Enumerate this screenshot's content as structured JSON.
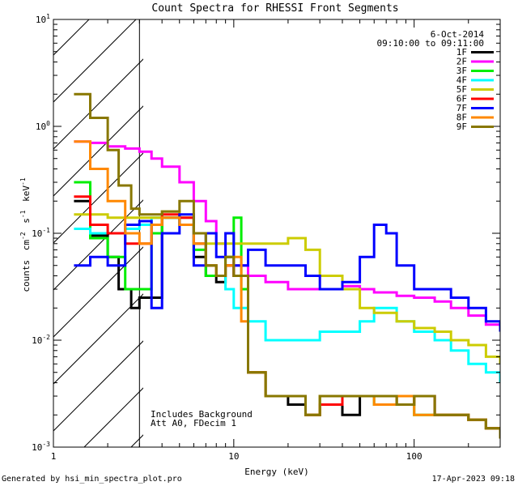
{
  "chart_data": {
    "type": "line",
    "title": "Count Spectra for RHESSI Front Segments",
    "xlabel": "Energy (keV)",
    "ylabel_parts": {
      "counts": "counts",
      "cm": "cm",
      "cm_exp": "-2",
      "s": "s",
      "s_exp": "-1",
      "kev": "keV",
      "kev_exp": "-1"
    },
    "xscale": "log",
    "yscale": "log",
    "xlim": [
      1.0,
      300.0
    ],
    "ylim": [
      0.001,
      10.0
    ],
    "x_ticks": [
      {
        "value": 1,
        "label": "1"
      },
      {
        "value": 10,
        "label": "10"
      },
      {
        "value": 100,
        "label": "100"
      }
    ],
    "y_ticks": [
      {
        "value": 0.001,
        "base": "10",
        "exp": "-3"
      },
      {
        "value": 0.01,
        "base": "10",
        "exp": "-2"
      },
      {
        "value": 0.1,
        "base": "10",
        "exp": "-1"
      },
      {
        "value": 1,
        "base": "10",
        "exp": "0"
      },
      {
        "value": 10,
        "base": "10",
        "exp": "1"
      }
    ],
    "hatched_region_kev": [
      1.0,
      3.0
    ],
    "date": "6-Oct-2014",
    "time_range": "09:10:00 to 09:11:00",
    "annotations": [
      "Includes Background",
      "Att A0, FDecim 1"
    ],
    "footer_left": "Generated by hsi_min_spectra_plot.pro",
    "footer_right": "17-Apr-2023 09:18",
    "series": [
      {
        "name": "1F",
        "color": "#000000",
        "x": [
          1.3,
          1.6,
          2.0,
          2.3,
          2.7,
          3.0,
          4.0,
          5.0,
          6.0,
          7.0,
          8.0,
          9.0,
          10.0,
          12.0,
          15.0,
          20.0,
          25.0,
          30.0,
          40.0,
          50.0,
          60.0,
          80.0,
          100.0,
          130.0,
          160.0,
          200.0,
          250.0,
          300.0
        ],
        "y": [
          0.2,
          0.095,
          0.06,
          0.03,
          0.02,
          0.025,
          0.14,
          0.12,
          0.06,
          0.04,
          0.035,
          0.05,
          0.04,
          0.005,
          0.003,
          0.0025,
          0.002,
          0.0025,
          0.002,
          0.003,
          0.003,
          0.0025,
          0.003,
          0.002,
          0.002,
          0.0018,
          0.0015,
          0.0012
        ]
      },
      {
        "name": "2F",
        "color": "#ff00ff",
        "x": [
          1.3,
          1.6,
          2.0,
          2.5,
          3.0,
          3.5,
          4.0,
          5.0,
          6.0,
          7.0,
          8.0,
          9.0,
          10.0,
          12.0,
          15.0,
          20.0,
          25.0,
          30.0,
          40.0,
          50.0,
          60.0,
          80.0,
          100.0,
          130.0,
          160.0,
          200.0,
          250.0,
          300.0
        ],
        "y": [
          0.72,
          0.7,
          0.65,
          0.62,
          0.58,
          0.5,
          0.42,
          0.3,
          0.2,
          0.13,
          0.08,
          0.06,
          0.05,
          0.04,
          0.035,
          0.03,
          0.03,
          0.03,
          0.032,
          0.03,
          0.028,
          0.026,
          0.025,
          0.023,
          0.02,
          0.017,
          0.014,
          0.012
        ]
      },
      {
        "name": "3F",
        "color": "#00ee00",
        "x": [
          1.3,
          1.6,
          2.0,
          2.5,
          3.0,
          3.5,
          4.0,
          5.0,
          6.0,
          7.0,
          8.0,
          9.0,
          10.0,
          11.0,
          12.0,
          15.0,
          20.0,
          25.0,
          30.0,
          40.0,
          50.0,
          60.0,
          80.0,
          100.0,
          130.0,
          160.0,
          200.0,
          250.0,
          300.0
        ],
        "y": [
          0.3,
          0.09,
          0.06,
          0.03,
          0.03,
          0.1,
          0.14,
          0.12,
          0.07,
          0.04,
          0.04,
          0.06,
          0.14,
          0.03,
          0.005,
          0.003,
          0.003,
          0.002,
          0.003,
          0.003,
          0.003,
          0.0025,
          0.003,
          0.002,
          0.002,
          0.002,
          0.0018,
          0.0015,
          0.0012
        ]
      },
      {
        "name": "4F",
        "color": "#00ffff",
        "x": [
          1.3,
          1.6,
          2.0,
          2.5,
          3.0,
          3.5,
          4.0,
          5.0,
          6.0,
          7.0,
          8.0,
          9.0,
          10.0,
          12.0,
          15.0,
          20.0,
          25.0,
          30.0,
          40.0,
          50.0,
          60.0,
          70.0,
          80.0,
          100.0,
          130.0,
          160.0,
          200.0,
          250.0,
          300.0
        ],
        "y": [
          0.11,
          0.1,
          0.1,
          0.11,
          0.12,
          0.14,
          0.14,
          0.12,
          0.08,
          0.05,
          0.04,
          0.03,
          0.02,
          0.015,
          0.01,
          0.01,
          0.01,
          0.012,
          0.012,
          0.015,
          0.02,
          0.02,
          0.015,
          0.012,
          0.01,
          0.008,
          0.006,
          0.005,
          0.004
        ]
      },
      {
        "name": "5F",
        "color": "#cccc00",
        "x": [
          1.3,
          1.6,
          2.0,
          2.5,
          3.0,
          3.5,
          4.0,
          5.0,
          6.0,
          7.0,
          8.0,
          9.0,
          10.0,
          12.0,
          15.0,
          20.0,
          25.0,
          30.0,
          40.0,
          50.0,
          60.0,
          80.0,
          100.0,
          130.0,
          160.0,
          200.0,
          250.0,
          300.0
        ],
        "y": [
          0.15,
          0.15,
          0.14,
          0.14,
          0.14,
          0.14,
          0.16,
          0.14,
          0.1,
          0.08,
          0.08,
          0.08,
          0.08,
          0.08,
          0.08,
          0.09,
          0.07,
          0.04,
          0.03,
          0.02,
          0.018,
          0.015,
          0.013,
          0.012,
          0.01,
          0.009,
          0.007,
          0.006
        ]
      },
      {
        "name": "6F",
        "color": "#ff0000",
        "x": [
          1.3,
          1.6,
          2.0,
          2.5,
          3.0,
          3.5,
          4.0,
          5.0,
          6.0,
          7.0,
          8.0,
          9.0,
          10.0,
          12.0,
          15.0,
          20.0,
          25.0,
          30.0,
          40.0,
          50.0,
          60.0,
          80.0,
          100.0,
          130.0,
          160.0,
          200.0,
          250.0,
          300.0
        ],
        "y": [
          0.22,
          0.12,
          0.1,
          0.08,
          0.08,
          0.12,
          0.15,
          0.14,
          0.08,
          0.05,
          0.04,
          0.05,
          0.04,
          0.005,
          0.003,
          0.003,
          0.002,
          0.0025,
          0.003,
          0.003,
          0.003,
          0.0025,
          0.003,
          0.002,
          0.002,
          0.0018,
          0.0015,
          0.0012
        ]
      },
      {
        "name": "7F",
        "color": "#0000ff",
        "x": [
          1.3,
          1.6,
          2.0,
          2.5,
          3.0,
          3.5,
          4.0,
          5.0,
          6.0,
          7.0,
          8.0,
          9.0,
          10.0,
          12.0,
          15.0,
          20.0,
          25.0,
          30.0,
          40.0,
          50.0,
          60.0,
          70.0,
          80.0,
          100.0,
          130.0,
          160.0,
          200.0,
          250.0,
          300.0
        ],
        "y": [
          0.05,
          0.06,
          0.05,
          0.12,
          0.13,
          0.02,
          0.1,
          0.15,
          0.05,
          0.1,
          0.06,
          0.1,
          0.05,
          0.07,
          0.05,
          0.05,
          0.04,
          0.03,
          0.035,
          0.06,
          0.12,
          0.1,
          0.05,
          0.03,
          0.03,
          0.025,
          0.02,
          0.015,
          0.012
        ]
      },
      {
        "name": "8F",
        "color": "#ff8800",
        "x": [
          1.3,
          1.6,
          2.0,
          2.5,
          3.0,
          3.5,
          4.0,
          5.0,
          6.0,
          7.0,
          8.0,
          9.0,
          10.0,
          11.0,
          12.0,
          15.0,
          20.0,
          25.0,
          30.0,
          40.0,
          50.0,
          60.0,
          80.0,
          100.0,
          130.0,
          160.0,
          200.0,
          250.0,
          300.0
        ],
        "y": [
          0.72,
          0.4,
          0.2,
          0.1,
          0.08,
          0.12,
          0.14,
          0.12,
          0.08,
          0.05,
          0.04,
          0.05,
          0.06,
          0.015,
          0.005,
          0.003,
          0.003,
          0.002,
          0.003,
          0.003,
          0.003,
          0.0025,
          0.003,
          0.002,
          0.002,
          0.002,
          0.0018,
          0.0015,
          0.0012
        ]
      },
      {
        "name": "9F",
        "color": "#887700",
        "x": [
          1.3,
          1.6,
          2.0,
          2.3,
          2.7,
          3.0,
          3.5,
          4.0,
          5.0,
          6.0,
          7.0,
          8.0,
          9.0,
          10.0,
          12.0,
          15.0,
          20.0,
          25.0,
          30.0,
          40.0,
          50.0,
          60.0,
          80.0,
          100.0,
          130.0,
          160.0,
          200.0,
          250.0,
          300.0
        ],
        "y": [
          2.0,
          1.2,
          0.6,
          0.28,
          0.17,
          0.15,
          0.15,
          0.16,
          0.2,
          0.1,
          0.05,
          0.04,
          0.06,
          0.04,
          0.005,
          0.003,
          0.003,
          0.002,
          0.003,
          0.003,
          0.003,
          0.003,
          0.0025,
          0.003,
          0.002,
          0.002,
          0.0018,
          0.0015,
          0.0012
        ]
      }
    ]
  }
}
